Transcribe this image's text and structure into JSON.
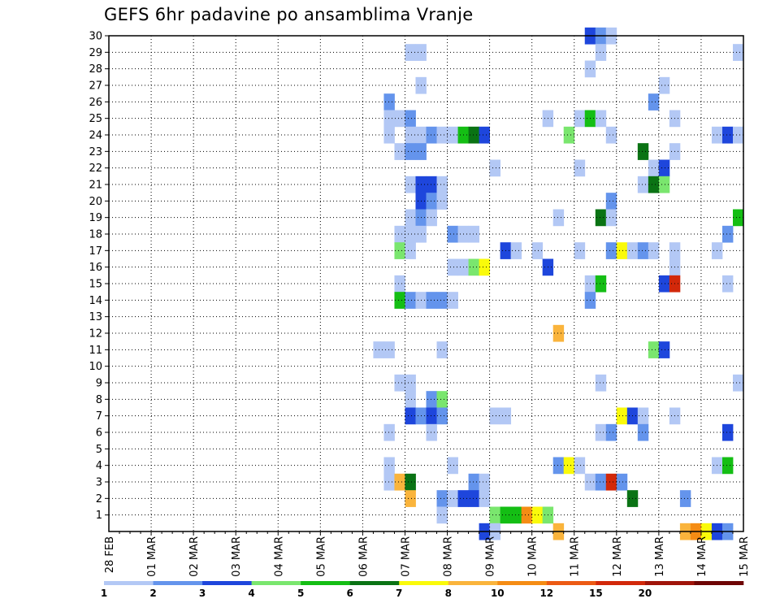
{
  "chart_data": {
    "type": "heatmap",
    "title": "GEFS 6hr padavine po ansamblima Vranje",
    "xlabel": "",
    "ylabel": "",
    "x_tick_labels": [
      "28 FEB",
      "01 MAR",
      "02 MAR",
      "03 MAR",
      "04 MAR",
      "05 MAR",
      "06 MAR",
      "07 MAR",
      "08 MAR",
      "09 MAR",
      "10 MAR",
      "11 MAR",
      "12 MAR",
      "13 MAR",
      "14 MAR",
      "15 MAR"
    ],
    "y_tick_labels": [
      "1",
      "2",
      "3",
      "4",
      "5",
      "6",
      "7",
      "8",
      "9",
      "10",
      "11",
      "12",
      "13",
      "14",
      "15",
      "16",
      "17",
      "18",
      "19",
      "20",
      "21",
      "22",
      "23",
      "24",
      "25",
      "26",
      "27",
      "28",
      "29",
      "30"
    ],
    "y_range": [
      0,
      30
    ],
    "time_steps_per_day": 4,
    "total_time_steps": 60,
    "grid": "dotted",
    "legend_position": "bottom",
    "colorbar": {
      "colors": [
        "#b3c8f5",
        "#6494ec",
        "#1e46dc",
        "#7ae66e",
        "#14be14",
        "#0a7314",
        "#fafa0a",
        "#fab43c",
        "#f58c14",
        "#ec5a14",
        "#d2280a",
        "#a0140a",
        "#6e0505"
      ],
      "labels": [
        "1",
        "2",
        "3",
        "4",
        "5",
        "6",
        "7",
        "8",
        "10",
        "12",
        "15",
        "20",
        ""
      ]
    },
    "cells": [
      [
        0,
        30,
        45,
        3
      ],
      [
        0,
        30,
        46,
        2
      ],
      [
        0,
        30,
        47,
        1
      ],
      [
        0,
        29,
        28,
        1
      ],
      [
        0,
        29,
        29,
        1
      ],
      [
        0,
        29,
        46,
        1
      ],
      [
        0,
        29,
        59,
        1
      ],
      [
        0,
        28,
        45,
        1
      ],
      [
        0,
        27,
        29,
        1
      ],
      [
        0,
        27,
        52,
        1
      ],
      [
        0,
        26,
        26,
        2
      ],
      [
        0,
        26,
        51,
        2
      ],
      [
        0,
        25,
        26,
        1
      ],
      [
        0,
        25,
        27,
        1
      ],
      [
        0,
        25,
        28,
        2
      ],
      [
        0,
        25,
        41,
        1
      ],
      [
        0,
        25,
        44,
        1
      ],
      [
        0,
        25,
        45,
        5
      ],
      [
        0,
        25,
        46,
        1
      ],
      [
        0,
        25,
        53,
        1
      ],
      [
        0,
        24,
        26,
        1
      ],
      [
        0,
        24,
        28,
        1
      ],
      [
        0,
        24,
        29,
        1
      ],
      [
        0,
        24,
        30,
        2
      ],
      [
        0,
        24,
        31,
        1
      ],
      [
        0,
        24,
        32,
        1
      ],
      [
        0,
        24,
        33,
        5
      ],
      [
        0,
        24,
        34,
        6
      ],
      [
        0,
        24,
        35,
        3
      ],
      [
        0,
        24,
        43,
        4
      ],
      [
        0,
        24,
        47,
        1
      ],
      [
        0,
        24,
        57,
        1
      ],
      [
        0,
        24,
        58,
        3
      ],
      [
        0,
        24,
        59,
        1
      ],
      [
        0,
        23,
        27,
        1
      ],
      [
        0,
        23,
        28,
        2
      ],
      [
        0,
        23,
        29,
        2
      ],
      [
        0,
        23,
        50,
        6
      ],
      [
        0,
        23,
        53,
        1
      ],
      [
        0,
        22,
        36,
        1
      ],
      [
        0,
        22,
        44,
        1
      ],
      [
        0,
        22,
        51,
        1
      ],
      [
        0,
        22,
        52,
        3
      ],
      [
        0,
        21,
        28,
        1
      ],
      [
        0,
        21,
        29,
        3
      ],
      [
        0,
        21,
        30,
        3
      ],
      [
        0,
        21,
        31,
        1
      ],
      [
        0,
        21,
        50,
        1
      ],
      [
        0,
        21,
        51,
        6
      ],
      [
        0,
        21,
        52,
        4
      ],
      [
        0,
        20,
        29,
        3
      ],
      [
        0,
        20,
        30,
        2
      ],
      [
        0,
        20,
        31,
        1
      ],
      [
        0,
        20,
        47,
        2
      ],
      [
        0,
        19,
        28,
        1
      ],
      [
        0,
        19,
        29,
        2
      ],
      [
        0,
        19,
        30,
        1
      ],
      [
        0,
        19,
        42,
        1
      ],
      [
        0,
        19,
        46,
        6
      ],
      [
        0,
        19,
        47,
        1
      ],
      [
        0,
        19,
        59,
        5
      ],
      [
        0,
        18,
        27,
        1
      ],
      [
        0,
        18,
        28,
        1
      ],
      [
        0,
        18,
        29,
        1
      ],
      [
        0,
        18,
        32,
        2
      ],
      [
        0,
        18,
        33,
        1
      ],
      [
        0,
        18,
        34,
        1
      ],
      [
        0,
        18,
        58,
        2
      ],
      [
        0,
        17,
        27,
        4
      ],
      [
        0,
        17,
        28,
        1
      ],
      [
        0,
        17,
        37,
        3
      ],
      [
        0,
        17,
        38,
        1
      ],
      [
        0,
        17,
        40,
        1
      ],
      [
        0,
        17,
        44,
        1
      ],
      [
        0,
        17,
        47,
        2
      ],
      [
        0,
        17,
        48,
        7
      ],
      [
        0,
        17,
        49,
        1
      ],
      [
        0,
        17,
        50,
        2
      ],
      [
        0,
        17,
        51,
        1
      ],
      [
        0,
        17,
        53,
        1
      ],
      [
        0,
        17,
        57,
        1
      ],
      [
        0,
        16,
        32,
        1
      ],
      [
        0,
        16,
        33,
        1
      ],
      [
        0,
        16,
        34,
        4
      ],
      [
        0,
        16,
        35,
        7
      ],
      [
        0,
        16,
        41,
        3
      ],
      [
        0,
        16,
        53,
        1
      ],
      [
        0,
        15,
        27,
        1
      ],
      [
        0,
        15,
        45,
        1
      ],
      [
        0,
        15,
        46,
        5
      ],
      [
        0,
        15,
        52,
        3
      ],
      [
        0,
        15,
        53,
        11
      ],
      [
        0,
        15,
        58,
        1
      ],
      [
        0,
        14,
        27,
        5
      ],
      [
        0,
        14,
        28,
        2
      ],
      [
        0,
        14,
        29,
        1
      ],
      [
        0,
        14,
        30,
        2
      ],
      [
        0,
        14,
        31,
        2
      ],
      [
        0,
        14,
        32,
        1
      ],
      [
        0,
        14,
        45,
        2
      ],
      [
        0,
        12,
        42,
        8
      ],
      [
        0,
        11,
        25,
        1
      ],
      [
        0,
        11,
        26,
        1
      ],
      [
        0,
        11,
        31,
        1
      ],
      [
        0,
        11,
        51,
        4
      ],
      [
        0,
        11,
        52,
        3
      ],
      [
        0,
        9,
        27,
        1
      ],
      [
        0,
        9,
        28,
        1
      ],
      [
        0,
        9,
        46,
        1
      ],
      [
        0,
        9,
        59,
        1
      ],
      [
        0,
        8,
        28,
        1
      ],
      [
        0,
        8,
        30,
        2
      ],
      [
        0,
        8,
        31,
        4
      ],
      [
        0,
        7,
        28,
        3
      ],
      [
        0,
        7,
        29,
        2
      ],
      [
        0,
        7,
        30,
        3
      ],
      [
        0,
        7,
        31,
        2
      ],
      [
        0,
        7,
        36,
        1
      ],
      [
        0,
        7,
        37,
        1
      ],
      [
        0,
        7,
        48,
        7
      ],
      [
        0,
        7,
        49,
        3
      ],
      [
        0,
        7,
        50,
        1
      ],
      [
        0,
        7,
        53,
        1
      ],
      [
        0,
        6,
        26,
        1
      ],
      [
        0,
        6,
        30,
        1
      ],
      [
        0,
        6,
        46,
        1
      ],
      [
        0,
        6,
        47,
        2
      ],
      [
        0,
        6,
        50,
        2
      ],
      [
        0,
        6,
        58,
        3
      ],
      [
        0,
        4,
        26,
        1
      ],
      [
        0,
        4,
        32,
        1
      ],
      [
        0,
        4,
        42,
        2
      ],
      [
        0,
        4,
        43,
        7
      ],
      [
        0,
        4,
        44,
        1
      ],
      [
        0,
        4,
        57,
        1
      ],
      [
        0,
        4,
        58,
        5
      ],
      [
        0,
        3,
        26,
        1
      ],
      [
        0,
        3,
        27,
        8
      ],
      [
        0,
        3,
        28,
        6
      ],
      [
        0,
        3,
        34,
        2
      ],
      [
        0,
        3,
        35,
        1
      ],
      [
        0,
        3,
        45,
        1
      ],
      [
        0,
        3,
        46,
        2
      ],
      [
        0,
        3,
        47,
        11
      ],
      [
        0,
        3,
        48,
        2
      ],
      [
        0,
        2,
        28,
        8
      ],
      [
        0,
        2,
        31,
        2
      ],
      [
        0,
        2,
        32,
        1
      ],
      [
        0,
        2,
        33,
        3
      ],
      [
        0,
        2,
        34,
        3
      ],
      [
        0,
        2,
        35,
        1
      ],
      [
        0,
        2,
        49,
        6
      ],
      [
        0,
        2,
        54,
        2
      ],
      [
        0,
        1,
        31,
        1
      ],
      [
        0,
        1,
        36,
        4
      ],
      [
        0,
        1,
        37,
        5
      ],
      [
        0,
        1,
        38,
        5
      ],
      [
        0,
        1,
        39,
        9
      ],
      [
        0,
        1,
        40,
        7
      ],
      [
        0,
        1,
        41,
        4
      ],
      [
        0,
        0,
        35,
        3
      ],
      [
        0,
        0,
        36,
        1
      ],
      [
        0,
        0,
        42,
        8
      ],
      [
        0,
        0,
        54,
        8
      ],
      [
        0,
        0,
        55,
        9
      ],
      [
        0,
        0,
        56,
        7
      ],
      [
        0,
        0,
        57,
        3
      ],
      [
        0,
        0,
        58,
        2
      ]
    ]
  }
}
